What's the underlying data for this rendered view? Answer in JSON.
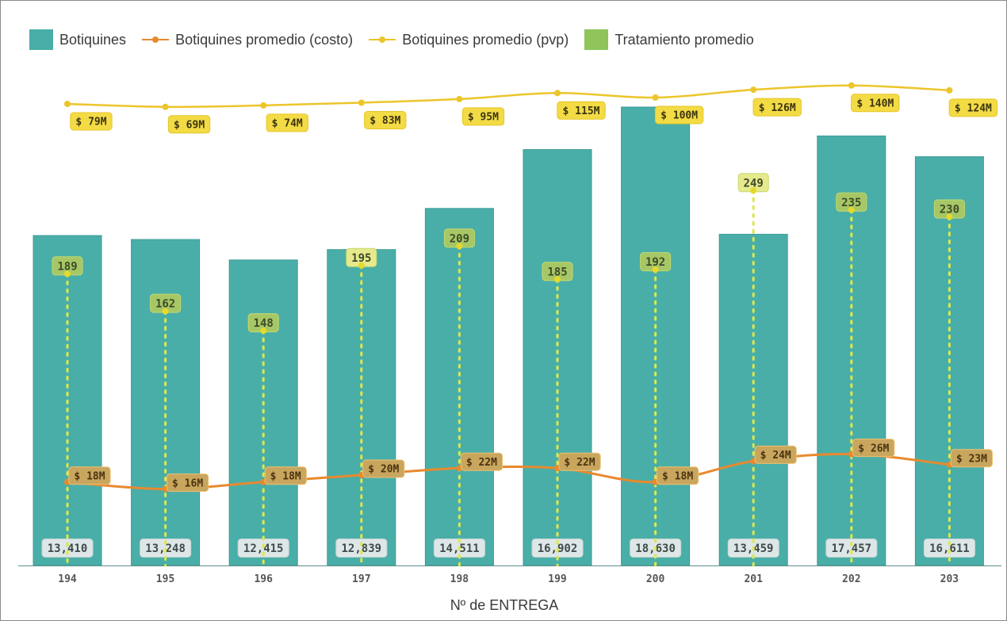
{
  "chart_data": {
    "type": "bar",
    "title": "",
    "xlabel": "Nº de ENTREGA",
    "ylabel": "",
    "categories": [
      "194",
      "195",
      "196",
      "197",
      "198",
      "199",
      "200",
      "201",
      "202",
      "203"
    ],
    "legend_position": "top-left",
    "grid": false,
    "series": [
      {
        "name": "Botiquines",
        "type": "bar",
        "color": "#4aaea8",
        "values": [
          13410,
          13248,
          12415,
          12839,
          14511,
          16902,
          18630,
          13459,
          17457,
          16611
        ],
        "labels": [
          "13,410",
          "13,248",
          "12,415",
          "12,839",
          "14,511",
          "16,902",
          "18,630",
          "13,459",
          "17,457",
          "16,611"
        ]
      },
      {
        "name": "Botiquines promedio (costo)",
        "type": "line",
        "color": "#e8892e",
        "values": [
          18,
          16,
          18,
          20,
          22,
          22,
          18,
          24,
          26,
          23
        ],
        "unit": "M",
        "labels": [
          "$ 18M",
          "$ 16M",
          "$ 18M",
          "$ 20M",
          "$ 22M",
          "$ 22M",
          "$ 18M",
          "$ 24M",
          "$ 26M",
          "$ 23M"
        ]
      },
      {
        "name": "Botiquines promedio (pvp)",
        "type": "line",
        "color": "#ecc52a",
        "values": [
          79,
          69,
          74,
          83,
          95,
          115,
          100,
          126,
          140,
          124
        ],
        "unit": "M",
        "labels": [
          "$ 79M",
          "$ 69M",
          "$ 74M",
          "$ 83M",
          "$ 95M",
          "$ 115M",
          "$ 100M",
          "$ 126M",
          "$ 140M",
          "$ 124M"
        ]
      },
      {
        "name": "Tratamiento promedio",
        "type": "dotted-stem",
        "color": "#8fc45a",
        "values": [
          189,
          162,
          148,
          195,
          209,
          185,
          192,
          249,
          235,
          230
        ],
        "labels": [
          "189",
          "162",
          "148",
          "195",
          "209",
          "185",
          "192",
          "249",
          "235",
          "230"
        ]
      }
    ]
  }
}
